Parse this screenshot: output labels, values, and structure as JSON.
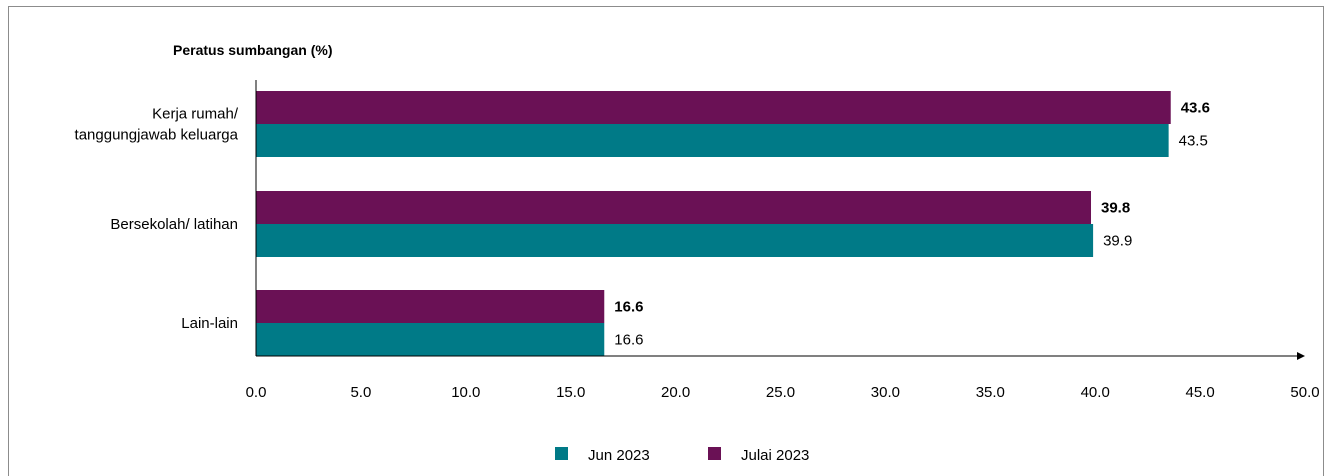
{
  "chart_data": {
    "type": "bar",
    "orientation": "horizontal",
    "title": "",
    "ylabel": "Peratus sumbangan (%)",
    "xlabel": "",
    "categories": [
      [
        "Kerja rumah/",
        "tanggungjawab keluarga"
      ],
      [
        "Bersekolah/ latihan"
      ],
      [
        "Lain-lain"
      ]
    ],
    "series": [
      {
        "name": "Julai 2023",
        "color": "#6a1155",
        "values": [
          43.6,
          39.8,
          16.6
        ],
        "label_bold": true
      },
      {
        "name": "Jun 2023",
        "color": "#007a87",
        "values": [
          43.5,
          39.9,
          16.6
        ],
        "label_bold": false
      }
    ],
    "xlim": [
      0,
      50
    ],
    "xticks": [
      "0.0",
      "5.0",
      "10.0",
      "15.0",
      "20.0",
      "25.0",
      "30.0",
      "35.0",
      "40.0",
      "45.0",
      "50.0"
    ],
    "grid": false,
    "legend": {
      "position": "bottom",
      "order": [
        "Jun 2023",
        "Julai 2023"
      ]
    }
  }
}
